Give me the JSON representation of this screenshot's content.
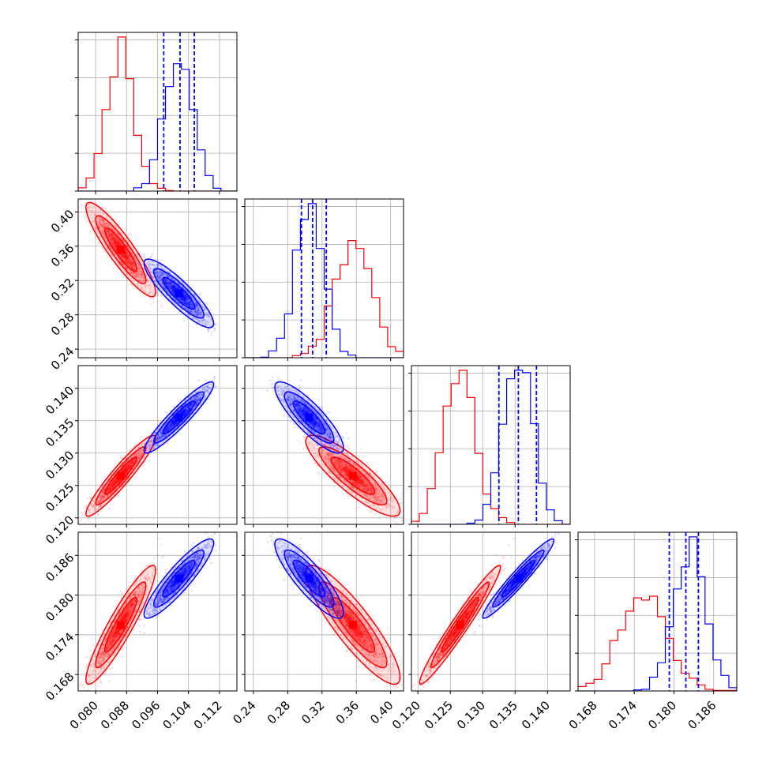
{
  "chart_data": {
    "type": "corner",
    "title": "",
    "grid": true,
    "params": [
      {
        "lim": [
          0.0755,
          0.1165
        ],
        "ticks": [
          "0.080",
          "0.088",
          "0.096",
          "0.104",
          "0.112"
        ]
      },
      {
        "lim": [
          0.23,
          0.415
        ],
        "ticks": [
          "0.24",
          "0.28",
          "0.32",
          "0.36",
          "0.40"
        ]
      },
      {
        "lim": [
          0.119,
          0.1435
        ],
        "ticks": [
          "0.120",
          "0.125",
          "0.130",
          "0.135",
          "0.140"
        ]
      },
      {
        "lim": [
          0.1655,
          0.1895
        ],
        "ticks": [
          "0.168",
          "0.174",
          "0.180",
          "0.186"
        ]
      }
    ],
    "series": [
      {
        "color": "#ff0000",
        "mean": [
          0.0865,
          0.356,
          0.1265,
          0.1755
        ],
        "sd": [
          0.0036,
          0.022,
          0.0025,
          0.0036
        ],
        "corr": [
          [
            1,
            -0.9,
            0.94,
            0.92
          ],
          [
            -0.9,
            1,
            -0.86,
            -0.88
          ],
          [
            0.94,
            -0.86,
            1,
            0.97
          ],
          [
            0.92,
            -0.88,
            0.97,
            1
          ]
        ],
        "quantiles": [
          null,
          null,
          null,
          null
        ]
      },
      {
        "color": "#0000ff",
        "mean": [
          0.1015,
          0.305,
          0.1355,
          0.1825
        ],
        "sd": [
          0.0036,
          0.016,
          0.0022,
          0.0024
        ],
        "corr": [
          [
            1,
            -0.88,
            0.93,
            0.9
          ],
          [
            -0.88,
            1,
            -0.85,
            -0.86
          ],
          [
            0.93,
            -0.85,
            1,
            0.96
          ],
          [
            0.9,
            -0.86,
            0.96,
            1
          ]
        ],
        "quantiles": [
          [
            0.0976,
            0.1018,
            0.1055
          ],
          [
            0.296,
            0.309,
            0.325
          ],
          [
            0.1325,
            0.1355,
            0.1383
          ],
          [
            0.1793,
            0.1818,
            0.1837
          ]
        ]
      }
    ]
  }
}
